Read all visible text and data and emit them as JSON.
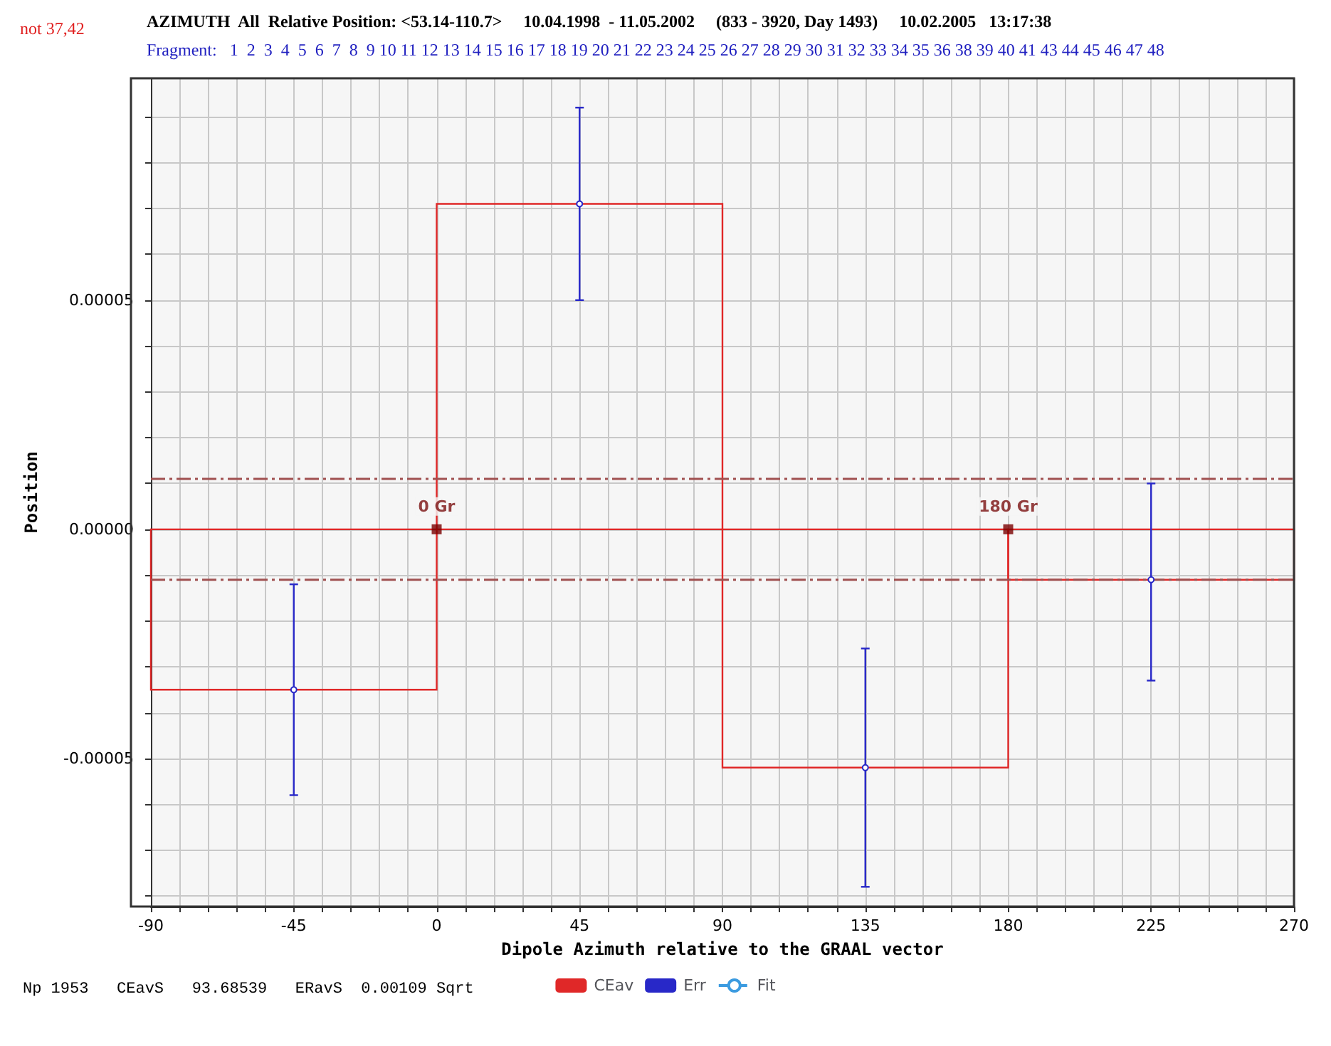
{
  "chart_data": {
    "type": "bar",
    "title": "AZIMUTH  All  Relative Position: <53.14-110.7>     10.04.1998  - 11.05.2002     (833 - 3920, Day 1493)     10.02.2005   13:17:38",
    "subtitle": "Fragment:   1  2  3  4  5  6  7  8  9 10 11 12 13 14 15 16 17 18 19 20 21 22 23 24 25 26 27 28 29 30 31 32 33 34 35 36 38 39 40 41 43 44 45 46 47 48",
    "xlabel": "Dipole Azimuth relative to the GRAAL vector",
    "ylabel": "Position",
    "x": [
      -45,
      45,
      135,
      225
    ],
    "series": [
      {
        "name": "CEav",
        "color": "#e02828",
        "values": [
          -3.5e-05,
          7.1e-05,
          -5.2e-05,
          -1.1e-05
        ]
      },
      {
        "name": "Err",
        "type": "scatter",
        "color": "#2828c8",
        "values": [
          -3.5e-05,
          7.1e-05,
          -5.2e-05,
          -1.1e-05
        ],
        "errors": [
          [
            -5.8e-05,
            -1.2e-05
          ],
          [
            5e-05,
            9.2e-05
          ],
          [
            -7.8e-05,
            -2.6e-05
          ],
          [
            -3.3e-05,
            1e-05
          ]
        ]
      },
      {
        "name": "Fit",
        "type": "line",
        "color": "#3c9be0",
        "line_style": "dashed",
        "values": [
          null,
          null,
          null,
          null
        ]
      }
    ],
    "xlim": [
      -90,
      270
    ],
    "xticks": [
      {
        "value": -90,
        "label": "-90"
      },
      {
        "value": -81,
        "label": null
      },
      {
        "value": -72,
        "label": null
      },
      {
        "value": -63,
        "label": null
      },
      {
        "value": -54,
        "label": null
      },
      {
        "value": -45,
        "label": "-45"
      },
      {
        "value": -36,
        "label": null
      },
      {
        "value": -27,
        "label": null
      },
      {
        "value": -18,
        "label": null
      },
      {
        "value": -9,
        "label": null
      },
      0,
      {
        "value": 9,
        "label": null
      },
      {
        "value": 18,
        "label": null
      },
      {
        "value": 27,
        "label": null
      },
      {
        "value": 36,
        "label": null
      },
      45,
      {
        "value": 54,
        "label": null
      },
      {
        "value": 63,
        "label": null
      },
      {
        "value": 72,
        "label": null
      },
      {
        "value": 81,
        "label": null
      },
      90,
      {
        "value": 99,
        "label": null
      },
      {
        "value": 108,
        "label": null
      },
      {
        "value": 117,
        "label": null
      },
      {
        "value": 126,
        "label": null
      },
      135,
      {
        "value": 144,
        "label": null
      },
      {
        "value": 153,
        "label": null
      },
      {
        "value": 162,
        "label": null
      },
      {
        "value": 171,
        "label": null
      },
      180,
      {
        "value": 189,
        "label": null
      },
      {
        "value": 198,
        "label": null
      },
      {
        "value": 207,
        "label": null
      },
      {
        "value": 216,
        "label": null
      },
      225,
      {
        "value": 234,
        "label": null
      },
      {
        "value": 243,
        "label": null
      },
      {
        "value": 252,
        "label": null
      },
      {
        "value": 261,
        "label": null
      },
      270
    ],
    "ylim": [
      -8.23e-05,
      9.84e-05
    ],
    "yticks": [
      {
        "value": -8e-05,
        "label": null
      },
      {
        "value": -7e-05,
        "label": null
      },
      {
        "value": -6e-05,
        "label": null
      },
      {
        "value": -5e-05,
        "label": "-0.00005"
      },
      {
        "value": -4e-05,
        "label": null
      },
      {
        "value": -3e-05,
        "label": null
      },
      {
        "value": -2e-05,
        "label": null
      },
      {
        "value": -1e-05,
        "label": null
      },
      {
        "value": 0,
        "label": "0.00000"
      },
      {
        "value": 1e-05,
        "label": null
      },
      {
        "value": 2e-05,
        "label": null
      },
      {
        "value": 3e-05,
        "label": null
      },
      {
        "value": 4e-05,
        "label": null
      },
      {
        "value": 5e-05,
        "label": "0.00005"
      },
      {
        "value": 6e-05,
        "label": null
      },
      {
        "value": 7e-05,
        "label": null
      },
      {
        "value": 8e-05,
        "label": null
      },
      {
        "value": 9e-05,
        "label": null
      }
    ],
    "ref_lines": [
      {
        "axis": "y",
        "value": 1.1e-05,
        "color": "#a05050",
        "line_style": "dashed"
      },
      {
        "axis": "y",
        "value": -1.1e-05,
        "color": "#a05050",
        "line_style": "dashed"
      }
    ],
    "annotations": [
      "not 37,42",
      {
        "text": "0 Gr",
        "x": 0,
        "y": 0
      },
      {
        "text": "180 Gr",
        "x": 180,
        "y": 0
      },
      "Np 1953   CEavS   93.68539   ERavS  0.00109 Sqrt"
    ],
    "grid": true,
    "legend": "bottom"
  }
}
